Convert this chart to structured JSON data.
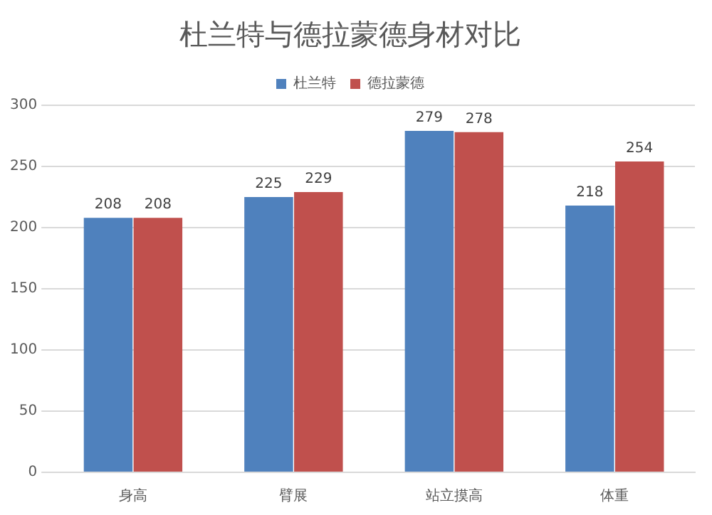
{
  "chart_data": {
    "type": "bar",
    "title": "杜兰特与德拉蒙德身材对比",
    "categories": [
      "身高",
      "臂展",
      "站立摸高",
      "体重"
    ],
    "series": [
      {
        "name": "杜兰特",
        "color": "#4f81bd",
        "values": [
          208,
          225,
          279,
          218
        ]
      },
      {
        "name": "德拉蒙德",
        "color": "#c0504d",
        "values": [
          208,
          229,
          278,
          254
        ]
      }
    ],
    "ylim": [
      0,
      300
    ],
    "yticks": [
      0,
      50,
      100,
      150,
      200,
      250,
      300
    ],
    "grid": "y",
    "legend": "top",
    "data_labels": true
  }
}
